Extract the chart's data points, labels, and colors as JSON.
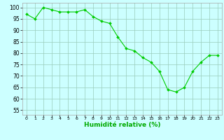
{
  "x": [
    0,
    1,
    2,
    3,
    4,
    5,
    6,
    7,
    8,
    9,
    10,
    11,
    12,
    13,
    14,
    15,
    16,
    17,
    18,
    19,
    20,
    21,
    22,
    23
  ],
  "y": [
    97,
    95,
    100,
    99,
    98,
    98,
    98,
    99,
    96,
    94,
    93,
    87,
    82,
    81,
    78,
    76,
    72,
    64,
    63,
    65,
    72,
    76,
    79,
    79
  ],
  "line_color": "#00cc00",
  "marker_color": "#00cc00",
  "bg_color": "#ccffff",
  "grid_color": "#99ccbb",
  "xlabel": "Humidité relative (%)",
  "xlabel_color": "#00aa00",
  "ylabel_ticks": [
    55,
    60,
    65,
    70,
    75,
    80,
    85,
    90,
    95,
    100
  ],
  "ylim": [
    53,
    102
  ],
  "xlim": [
    -0.5,
    23.5
  ]
}
